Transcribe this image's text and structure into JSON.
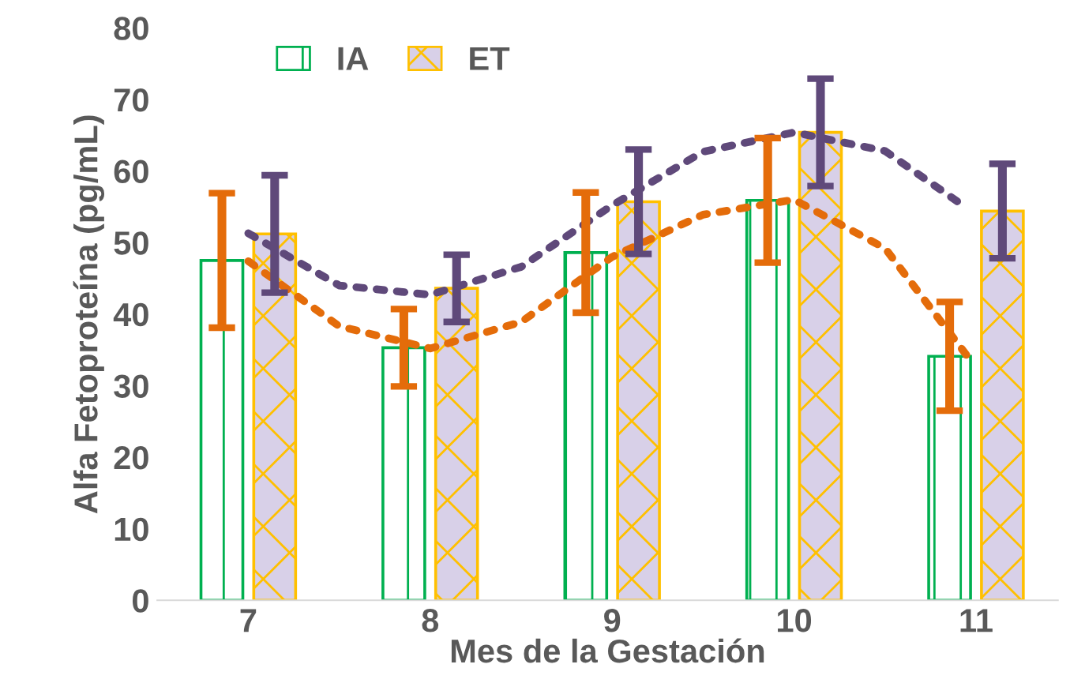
{
  "chart_data": {
    "type": "bar",
    "xlabel": "Mes de la Gestación",
    "ylabel": "Alfa Fetoproteína (pg/mL)",
    "x": [
      7,
      8,
      9,
      10,
      11
    ],
    "xlim": [
      6.5,
      11.45
    ],
    "xticks": [
      7,
      8,
      9,
      10,
      11
    ],
    "ylim": [
      0,
      80
    ],
    "yticks": [
      0,
      10,
      20,
      30,
      40,
      50,
      60,
      70,
      80
    ],
    "grid": false,
    "legend": "top left",
    "series": [
      {
        "name": "IA",
        "color": "#00b050",
        "values": [
          47.5,
          35.3,
          48.6,
          55.9,
          34.1
        ],
        "errors": [
          9.4,
          5.4,
          8.4,
          8.7,
          7.6
        ]
      },
      {
        "name": "ET",
        "color": "#ffc000",
        "values": [
          51.2,
          43.6,
          55.7,
          65.4,
          54.4
        ],
        "errors": [
          8.2,
          4.7,
          7.3,
          7.5,
          6.6
        ]
      },
      {
        "type": "line",
        "color": "#e46c0a",
        "line_style": "dotted",
        "x": [
          7,
          7.5,
          8,
          8.5,
          9,
          9.5,
          10,
          10.5,
          10.95
        ],
        "values": [
          47.4,
          38.3,
          35.2,
          38.9,
          48.0,
          53.9,
          56.0,
          49.2,
          34.2
        ]
      },
      {
        "type": "line",
        "color": "#5f497a",
        "line_style": "dotted",
        "x": [
          7,
          7.5,
          8,
          8.5,
          9,
          9.5,
          10,
          10.5,
          10.9
        ],
        "values": [
          51.3,
          44.0,
          42.7,
          46.6,
          55.2,
          62.7,
          65.4,
          62.8,
          55.7
        ]
      }
    ]
  }
}
